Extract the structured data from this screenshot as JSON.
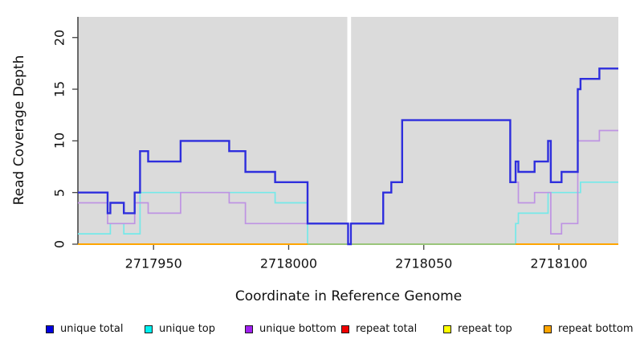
{
  "chart_data": {
    "type": "line",
    "subtype": "step",
    "title": "",
    "xlabel": "Coordinate in Reference Genome",
    "ylabel": "Read Coverage Depth",
    "xlim": [
      2717922,
      2718122
    ],
    "ylim": [
      0,
      22
    ],
    "x_ticks": [
      2717950,
      2718000,
      2718050,
      2718100
    ],
    "y_ticks": [
      0,
      5,
      10,
      15,
      20
    ],
    "grid": false,
    "legend_position": "bottom",
    "panel_background": "#DBDBDB",
    "axis_color": "#222222",
    "tick_color": "#444444",
    "gap_region": {
      "x1": 2718021.7,
      "x2": 2718023.1,
      "color": "#FFFFFF"
    },
    "series": [
      {
        "name": "unique total",
        "legend_color": "#0000E0",
        "line_color": "#2E2EDD",
        "line_width": 2.4,
        "x_end": 2718122,
        "steps": [
          [
            2717922,
            5
          ],
          [
            2717933,
            3
          ],
          [
            2717934,
            4
          ],
          [
            2717939,
            3
          ],
          [
            2717943,
            5
          ],
          [
            2717945,
            9
          ],
          [
            2717948,
            8
          ],
          [
            2717960,
            10
          ],
          [
            2717978,
            9
          ],
          [
            2717984,
            7
          ],
          [
            2717995,
            6
          ],
          [
            2718007,
            2
          ],
          [
            2718022,
            0
          ],
          [
            2718023,
            2
          ],
          [
            2718035,
            5
          ],
          [
            2718038,
            6
          ],
          [
            2718042,
            12
          ],
          [
            2718082,
            6
          ],
          [
            2718084,
            8
          ],
          [
            2718085,
            7
          ],
          [
            2718091,
            8
          ],
          [
            2718096,
            10
          ],
          [
            2718097,
            6
          ],
          [
            2718101,
            7
          ],
          [
            2718107,
            15
          ],
          [
            2718108,
            16
          ],
          [
            2718115,
            17
          ]
        ]
      },
      {
        "name": "unique top",
        "legend_color": "#00F0F0",
        "line_color": "#74E9E9",
        "line_width": 1.7,
        "x_end": 2718122,
        "steps": [
          [
            2717922,
            1
          ],
          [
            2717934,
            2
          ],
          [
            2717939,
            1
          ],
          [
            2717945,
            5
          ],
          [
            2717995,
            4
          ],
          [
            2718007,
            0
          ],
          [
            2718084,
            2
          ],
          [
            2718085,
            3
          ],
          [
            2718096,
            5
          ],
          [
            2718108,
            6
          ]
        ]
      },
      {
        "name": "unique bottom",
        "legend_color": "#A020F0",
        "line_color": "#BE93E3",
        "line_width": 1.7,
        "x_end": 2718122,
        "steps": [
          [
            2717922,
            4
          ],
          [
            2717933,
            2
          ],
          [
            2717943,
            4
          ],
          [
            2717948,
            3
          ],
          [
            2717960,
            5
          ],
          [
            2717978,
            4
          ],
          [
            2717984,
            2
          ],
          [
            2718022,
            0
          ],
          [
            2718023,
            2
          ],
          [
            2718035,
            5
          ],
          [
            2718038,
            6
          ],
          [
            2718042,
            12
          ],
          [
            2718082,
            6
          ],
          [
            2718085,
            4
          ],
          [
            2718091,
            5
          ],
          [
            2718097,
            1
          ],
          [
            2718101,
            2
          ],
          [
            2718107,
            10
          ],
          [
            2718115,
            11
          ]
        ]
      },
      {
        "name": "repeat total",
        "legend_color": "#F00000",
        "line_color": "#F00000",
        "line_width": 1.7,
        "x_end": 2718122,
        "steps": [
          [
            2717922,
            0
          ]
        ]
      },
      {
        "name": "repeat top",
        "legend_color": "#FFFF00",
        "line_color": "#FFFF00",
        "line_width": 1.7,
        "x_end": 2718122,
        "steps": [
          [
            2717922,
            0
          ]
        ]
      },
      {
        "name": "repeat bottom",
        "legend_color": "#FFA500",
        "line_color": "#FFA500",
        "line_width": 2,
        "x_end": 2718122,
        "steps": [
          [
            2717922,
            0
          ]
        ]
      }
    ],
    "draw_order": [
      "repeat total",
      "repeat top",
      "unique top",
      "repeat bottom",
      "overlap",
      "unique bottom",
      "unique total"
    ],
    "overlap_segments": [
      {
        "x1": 2718007,
        "x2": 2718084,
        "y": 0,
        "color": "#8CCA8C",
        "width": 1.7,
        "meaning": "unique top at 0 blended with repeat bottom"
      }
    ]
  }
}
